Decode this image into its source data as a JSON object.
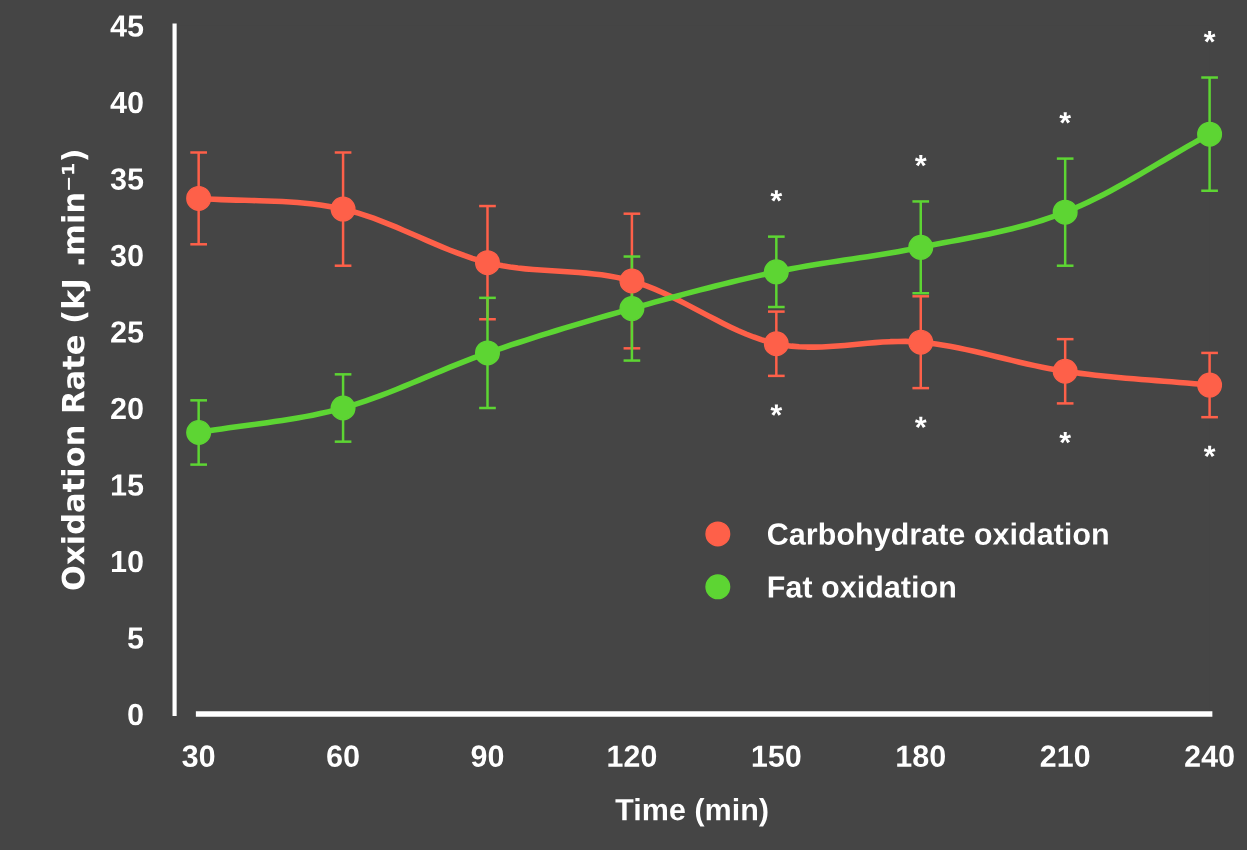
{
  "chart_data": {
    "type": "line",
    "xlabel": "Time (min)",
    "ylabel": "Oxidation Rate (kJ .min⁻¹)",
    "x": [
      30,
      60,
      90,
      120,
      150,
      180,
      210,
      240
    ],
    "series": [
      {
        "name": "Carbohydrate oxidation",
        "color": "#fe6049",
        "values": [
          33.7,
          33.0,
          29.5,
          28.3,
          24.2,
          24.3,
          22.4,
          21.5
        ],
        "errors": [
          3.0,
          3.7,
          3.7,
          4.4,
          2.1,
          3.0,
          2.1,
          2.1
        ]
      },
      {
        "name": "Fat oxidation",
        "color": "#5dd533",
        "values": [
          18.4,
          20.0,
          23.6,
          26.5,
          28.9,
          30.5,
          32.8,
          37.9
        ],
        "errors": [
          2.1,
          2.2,
          3.6,
          3.4,
          2.3,
          3.0,
          3.5,
          3.7
        ]
      }
    ],
    "xlim": [
      25,
      240
    ],
    "ylim": [
      0,
      45
    ],
    "xticks": [
      30,
      60,
      90,
      120,
      150,
      180,
      210,
      240
    ],
    "yticks": [
      0,
      5,
      10,
      15,
      20,
      25,
      30,
      35,
      40,
      45
    ],
    "marker": "circle",
    "line_style": "solid",
    "grid": false,
    "legend": "bottom right",
    "annotations": [
      {
        "text": "*",
        "x": 150,
        "y": 31.2
      },
      {
        "text": "*",
        "x": 180,
        "y": 33.5
      },
      {
        "text": "*",
        "x": 210,
        "y": 36.3
      },
      {
        "text": "*",
        "x": 240,
        "y": 41.6
      },
      {
        "text": "*",
        "x": 150,
        "y": 22.1
      },
      {
        "text": "*",
        "x": 180,
        "y": 21.3
      },
      {
        "text": "*",
        "x": 210,
        "y": 20.3
      },
      {
        "text": "*",
        "x": 240,
        "y": 19.4
      }
    ]
  }
}
